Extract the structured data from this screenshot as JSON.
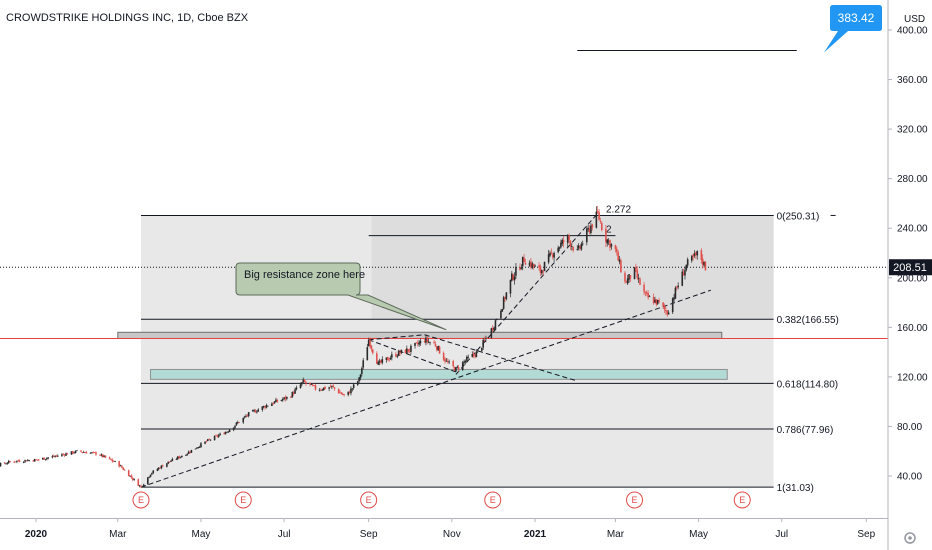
{
  "chart_data": {
    "type": "candlestick",
    "title": "CROWDSTRIKE HOLDINGS INC, 1D, Cboe BZX",
    "currency_label": "USD",
    "ylim": [
      0,
      420
    ],
    "y_ticks": [
      {
        "value": 400,
        "label": "400.00"
      },
      {
        "value": 360,
        "label": "360.00"
      },
      {
        "value": 320,
        "label": "320.00"
      },
      {
        "value": 280,
        "label": "280.00"
      },
      {
        "value": 240,
        "label": "240.00"
      },
      {
        "value": 200,
        "label": "200.00"
      },
      {
        "value": 160,
        "label": "160.00"
      },
      {
        "value": 120,
        "label": "120.00"
      },
      {
        "value": 80,
        "label": "80.00"
      },
      {
        "value": 40,
        "label": "40.00"
      }
    ],
    "x_ticks": [
      {
        "date": "2020-01-01",
        "label": "2020",
        "bold": true
      },
      {
        "date": "2020-03-01",
        "label": "Mar",
        "bold": false
      },
      {
        "date": "2020-05-01",
        "label": "May",
        "bold": false
      },
      {
        "date": "2020-07-01",
        "label": "Jul",
        "bold": false
      },
      {
        "date": "2020-09-01",
        "label": "Sep",
        "bold": false
      },
      {
        "date": "2020-11-01",
        "label": "Nov",
        "bold": false
      },
      {
        "date": "2021-01-01",
        "label": "2021",
        "bold": true
      },
      {
        "date": "2021-03-01",
        "label": "Mar",
        "bold": false
      },
      {
        "date": "2021-05-01",
        "label": "May",
        "bold": false
      },
      {
        "date": "2021-07-01",
        "label": "Jul",
        "bold": false
      },
      {
        "date": "2021-09-01",
        "label": "Sep",
        "bold": false
      }
    ],
    "price_path": [
      [
        "2019-11-15",
        50
      ],
      [
        "2019-12-01",
        48
      ],
      [
        "2019-12-15",
        52
      ],
      [
        "2020-01-01",
        53
      ],
      [
        "2020-01-15",
        56
      ],
      [
        "2020-02-01",
        60
      ],
      [
        "2020-02-15",
        58
      ],
      [
        "2020-03-01",
        50
      ],
      [
        "2020-03-10",
        40
      ],
      [
        "2020-03-18",
        31
      ],
      [
        "2020-03-25",
        42
      ],
      [
        "2020-04-05",
        50
      ],
      [
        "2020-04-20",
        58
      ],
      [
        "2020-05-05",
        68
      ],
      [
        "2020-05-20",
        76
      ],
      [
        "2020-06-05",
        90
      ],
      [
        "2020-06-20",
        98
      ],
      [
        "2020-07-05",
        104
      ],
      [
        "2020-07-15",
        116
      ],
      [
        "2020-07-25",
        110
      ],
      [
        "2020-08-05",
        112
      ],
      [
        "2020-08-15",
        104
      ],
      [
        "2020-08-25",
        118
      ],
      [
        "2020-09-01",
        150
      ],
      [
        "2020-09-08",
        130
      ],
      [
        "2020-09-20",
        138
      ],
      [
        "2020-10-01",
        142
      ],
      [
        "2020-10-12",
        150
      ],
      [
        "2020-10-20",
        146
      ],
      [
        "2020-10-28",
        132
      ],
      [
        "2020-11-04",
        126
      ],
      [
        "2020-11-12",
        134
      ],
      [
        "2020-11-20",
        140
      ],
      [
        "2020-12-01",
        160
      ],
      [
        "2020-12-08",
        178
      ],
      [
        "2020-12-15",
        200
      ],
      [
        "2020-12-24",
        215
      ],
      [
        "2021-01-05",
        205
      ],
      [
        "2021-01-15",
        222
      ],
      [
        "2021-01-25",
        232
      ],
      [
        "2021-02-01",
        220
      ],
      [
        "2021-02-10",
        240
      ],
      [
        "2021-02-16",
        251
      ],
      [
        "2021-02-22",
        232
      ],
      [
        "2021-03-01",
        222
      ],
      [
        "2021-03-08",
        196
      ],
      [
        "2021-03-15",
        205
      ],
      [
        "2021-03-23",
        185
      ],
      [
        "2021-04-01",
        180
      ],
      [
        "2021-04-08",
        172
      ],
      [
        "2021-04-15",
        192
      ],
      [
        "2021-04-22",
        210
      ],
      [
        "2021-05-01",
        220
      ],
      [
        "2021-05-06",
        208.51
      ]
    ],
    "last_price": {
      "value": 208.51,
      "label": "208.51"
    },
    "target_price": {
      "value": 383.42,
      "label": "383.42",
      "line_value": 383.42,
      "line_start": "2021-02-01",
      "line_end": "2021-07-12"
    },
    "horizontal_red_line": 151,
    "fib_box": {
      "start": "2020-03-18",
      "end": "2021-06-25",
      "price_top": 250.31,
      "price_bottom": 31.03,
      "inner_start": "2020-09-01"
    },
    "fib_levels": [
      {
        "ratio": "0",
        "value": 250.31,
        "label": "0(250.31)"
      },
      {
        "ratio": "0.382",
        "value": 166.55,
        "label": "0.382(166.55)"
      },
      {
        "ratio": "0.618",
        "value": 114.8,
        "label": "0.618(114.80)"
      },
      {
        "ratio": "0.786",
        "value": 77.96,
        "label": "0.786(77.96)"
      },
      {
        "ratio": "1",
        "value": 31.03,
        "label": "1(31.03)"
      }
    ],
    "extension_levels": [
      {
        "label": "2.272",
        "value": 250.31
      },
      {
        "label": "2",
        "value": 234
      }
    ],
    "zones": [
      {
        "name": "resistance",
        "start": "2020-03-01",
        "end": "2021-05-18",
        "top": 156,
        "bottom": 151,
        "fill": "#c8c8c8",
        "stroke": "#707070"
      },
      {
        "name": "support",
        "start": "2020-03-25",
        "end": "2021-05-22",
        "top": 126,
        "bottom": 118,
        "fill": "#b2dbd6",
        "stroke": "#909090"
      }
    ],
    "trendlines": [
      {
        "from": [
          "2020-03-18",
          31
        ],
        "to": [
          "2021-05-10",
          190
        ],
        "dashed": true
      },
      {
        "from": [
          "2020-11-04",
          122
        ],
        "to": [
          "2021-02-16",
          252
        ],
        "dashed": true
      },
      {
        "from": [
          "2020-09-01",
          150
        ],
        "to": [
          "2020-11-04",
          124
        ],
        "dashed": true
      },
      {
        "from": [
          "2020-09-01",
          150
        ],
        "to": [
          "2020-10-12",
          154
        ],
        "dashed": true
      },
      {
        "from": [
          "2020-10-12",
          154
        ],
        "to": [
          "2021-01-31",
          117
        ],
        "dashed": true
      }
    ],
    "callout": {
      "text": "Big resistance zone here",
      "anchor_date": "2020-10-28",
      "anchor_price": 158
    },
    "earnings_markers": [
      {
        "date": "2020-03-18",
        "label": "E"
      },
      {
        "date": "2020-06-01",
        "label": "E"
      },
      {
        "date": "2020-09-01",
        "label": "E"
      },
      {
        "date": "2020-12-01",
        "label": "E"
      },
      {
        "date": "2021-03-15",
        "label": "E"
      },
      {
        "date": "2021-06-02",
        "label": "E"
      }
    ],
    "colors": {
      "up": "#2a2a2a",
      "down": "#e0504d",
      "fib_fill": "#dcdcdc",
      "accent": "#2196f3",
      "red_line": "#e8403f",
      "earn": "#e04a4a"
    },
    "grid": false,
    "legend": "none"
  }
}
